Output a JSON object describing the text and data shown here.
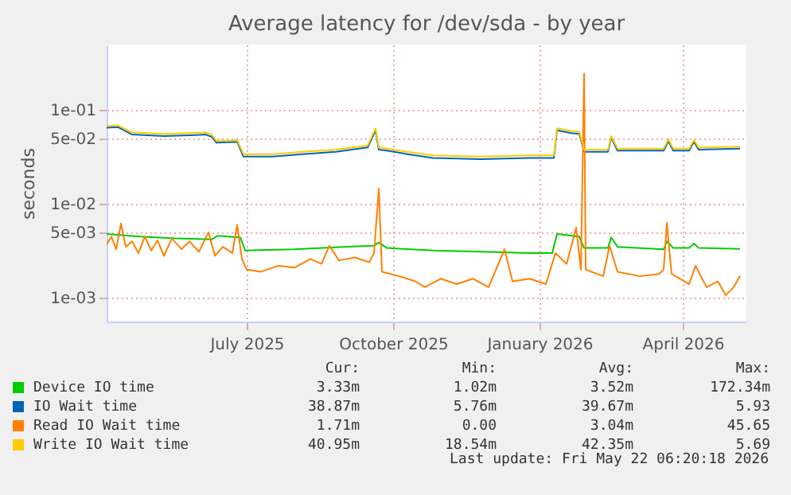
{
  "chart_data": {
    "type": "line",
    "title": "Average latency for /dev/sda - by year",
    "ylabel": "seconds",
    "log": "y",
    "grid": true,
    "legend": "bottom",
    "xlim": [
      "2025-04-19",
      "2026-05-26"
    ],
    "xticks": [
      {
        "value": "2025-07-16",
        "label": "July 2025"
      },
      {
        "value": "2025-10-16",
        "label": "October 2025"
      },
      {
        "value": "2026-01-16",
        "label": "January 2026"
      },
      {
        "value": "2026-04-16",
        "label": "April 2026"
      }
    ],
    "ylim": [
      0.00056,
      0.5
    ],
    "yticks": [
      {
        "value": 0.001,
        "label": "1e-03"
      },
      {
        "value": 0.005,
        "label": "5e-03"
      },
      {
        "value": 0.01,
        "label": "1e-02"
      },
      {
        "value": 0.05,
        "label": "5e-02"
      },
      {
        "value": 0.1,
        "label": "1e-01"
      }
    ],
    "series": [
      {
        "name": "Device IO time",
        "color": "#00cc00",
        "x": [
          "2025-04-19",
          "2025-05-10",
          "2025-06-01",
          "2025-06-24",
          "2025-06-28",
          "2025-07-12",
          "2025-07-15",
          "2025-08-15",
          "2025-09-15",
          "2025-10-04",
          "2025-10-07",
          "2025-10-12",
          "2025-11-10",
          "2025-12-10",
          "2026-01-10",
          "2026-01-24",
          "2026-01-27",
          "2026-02-10",
          "2026-02-13",
          "2026-02-28",
          "2026-03-02",
          "2026-03-06",
          "2026-04-04",
          "2026-04-06",
          "2026-04-10",
          "2026-04-20",
          "2026-04-23",
          "2026-04-26",
          "2026-05-22"
        ],
        "values": [
          0.0048,
          0.0045,
          0.0043,
          0.0042,
          0.0046,
          0.0044,
          0.0032,
          0.0033,
          0.0035,
          0.0036,
          0.0039,
          0.0034,
          0.0032,
          0.0031,
          0.003,
          0.003,
          0.0048,
          0.0045,
          0.0034,
          0.0034,
          0.0044,
          0.0035,
          0.0033,
          0.004,
          0.0034,
          0.0034,
          0.0038,
          0.0034,
          0.00333
        ]
      },
      {
        "name": "IO Wait time",
        "color": "#0066b3",
        "x": [
          "2025-04-19",
          "2025-04-26",
          "2025-05-05",
          "2025-05-25",
          "2025-06-10",
          "2025-06-20",
          "2025-06-24",
          "2025-06-27",
          "2025-07-10",
          "2025-07-14",
          "2025-08-01",
          "2025-08-20",
          "2025-09-10",
          "2025-09-30",
          "2025-10-05",
          "2025-10-07",
          "2025-10-12",
          "2025-10-25",
          "2025-11-10",
          "2025-12-10",
          "2026-01-10",
          "2026-01-25",
          "2026-01-27",
          "2026-02-05",
          "2026-02-10",
          "2026-02-13",
          "2026-02-28",
          "2026-03-02",
          "2026-03-06",
          "2026-04-04",
          "2026-04-07",
          "2026-04-10",
          "2026-04-20",
          "2026-04-23",
          "2026-04-26",
          "2026-05-22"
        ],
        "values": [
          0.065,
          0.066,
          0.055,
          0.053,
          0.054,
          0.055,
          0.052,
          0.045,
          0.046,
          0.032,
          0.032,
          0.034,
          0.036,
          0.04,
          0.061,
          0.038,
          0.037,
          0.034,
          0.031,
          0.03,
          0.031,
          0.031,
          0.061,
          0.057,
          0.056,
          0.036,
          0.036,
          0.051,
          0.037,
          0.037,
          0.047,
          0.037,
          0.037,
          0.046,
          0.038,
          0.03887
        ]
      },
      {
        "name": "Read IO Wait time",
        "color": "#ff8000",
        "x": [
          "2025-04-19",
          "2025-04-22",
          "2025-04-25",
          "2025-04-28",
          "2025-05-01",
          "2025-05-05",
          "2025-05-09",
          "2025-05-13",
          "2025-05-17",
          "2025-05-21",
          "2025-05-25",
          "2025-05-30",
          "2025-06-05",
          "2025-06-10",
          "2025-06-16",
          "2025-06-22",
          "2025-06-26",
          "2025-07-01",
          "2025-07-07",
          "2025-07-10",
          "2025-07-13",
          "2025-07-16",
          "2025-07-25",
          "2025-08-05",
          "2025-08-15",
          "2025-08-25",
          "2025-09-01",
          "2025-09-06",
          "2025-09-12",
          "2025-09-22",
          "2025-10-01",
          "2025-10-04",
          "2025-10-07",
          "2025-10-09",
          "2025-10-20",
          "2025-10-30",
          "2025-11-05",
          "2025-11-15",
          "2025-11-25",
          "2025-12-05",
          "2025-12-15",
          "2025-12-25",
          "2025-12-30",
          "2026-01-10",
          "2026-01-20",
          "2026-01-26",
          "2026-02-02",
          "2026-02-08",
          "2026-02-11",
          "2026-02-13",
          "2026-02-14",
          "2026-02-25",
          "2026-03-01",
          "2026-03-06",
          "2026-03-20",
          "2026-04-01",
          "2026-04-04",
          "2026-04-06",
          "2026-04-09",
          "2026-04-20",
          "2026-04-24",
          "2026-05-01",
          "2026-05-08",
          "2026-05-13",
          "2026-05-18",
          "2026-05-22"
        ],
        "values": [
          0.0037,
          0.0045,
          0.0033,
          0.0062,
          0.0035,
          0.004,
          0.003,
          0.0045,
          0.0032,
          0.0041,
          0.0028,
          0.0043,
          0.0033,
          0.004,
          0.0031,
          0.005,
          0.0028,
          0.0035,
          0.003,
          0.006,
          0.0026,
          0.002,
          0.0019,
          0.0022,
          0.0021,
          0.0026,
          0.0023,
          0.0036,
          0.0025,
          0.0027,
          0.0024,
          0.003,
          0.0146,
          0.0019,
          0.0017,
          0.0015,
          0.0013,
          0.0016,
          0.0014,
          0.0016,
          0.0013,
          0.0033,
          0.0015,
          0.0016,
          0.0014,
          0.003,
          0.0023,
          0.0056,
          0.002,
          0.245,
          0.002,
          0.0017,
          0.0036,
          0.0019,
          0.0017,
          0.0018,
          0.002,
          0.0063,
          0.0018,
          0.0014,
          0.0022,
          0.0013,
          0.0015,
          0.00107,
          0.0013,
          0.00171
        ]
      },
      {
        "name": "Write IO Wait time",
        "color": "#ffcc00",
        "x": [
          "2025-04-19",
          "2025-04-26",
          "2025-05-05",
          "2025-05-25",
          "2025-06-10",
          "2025-06-20",
          "2025-06-24",
          "2025-06-27",
          "2025-07-10",
          "2025-07-14",
          "2025-08-01",
          "2025-08-20",
          "2025-09-10",
          "2025-09-30",
          "2025-10-05",
          "2025-10-07",
          "2025-10-12",
          "2025-10-25",
          "2025-11-10",
          "2025-12-10",
          "2026-01-10",
          "2026-01-25",
          "2026-01-27",
          "2026-02-05",
          "2026-02-10",
          "2026-02-13",
          "2026-02-28",
          "2026-03-02",
          "2026-03-06",
          "2026-04-04",
          "2026-04-07",
          "2026-04-10",
          "2026-04-20",
          "2026-04-23",
          "2026-04-26",
          "2026-05-22"
        ],
        "values": [
          0.068,
          0.069,
          0.058,
          0.056,
          0.057,
          0.058,
          0.055,
          0.047,
          0.048,
          0.034,
          0.034,
          0.036,
          0.038,
          0.042,
          0.064,
          0.04,
          0.039,
          0.036,
          0.033,
          0.032,
          0.033,
          0.033,
          0.064,
          0.06,
          0.059,
          0.038,
          0.038,
          0.053,
          0.039,
          0.039,
          0.049,
          0.039,
          0.039,
          0.048,
          0.04,
          0.04095
        ]
      }
    ],
    "annotations": [
      "Cur:",
      "Min:",
      "Avg:",
      "Max:",
      "3.33m",
      "1.02m",
      "3.52m",
      "172.34m",
      "38.87m",
      "5.76m",
      "39.67m",
      "5.93",
      "1.71m",
      "0.00",
      "3.04m",
      "45.65",
      "40.95m",
      "18.54m",
      "42.35m",
      "5.69",
      "Last update: Fri May 22 06:20:18 2026"
    ]
  }
}
